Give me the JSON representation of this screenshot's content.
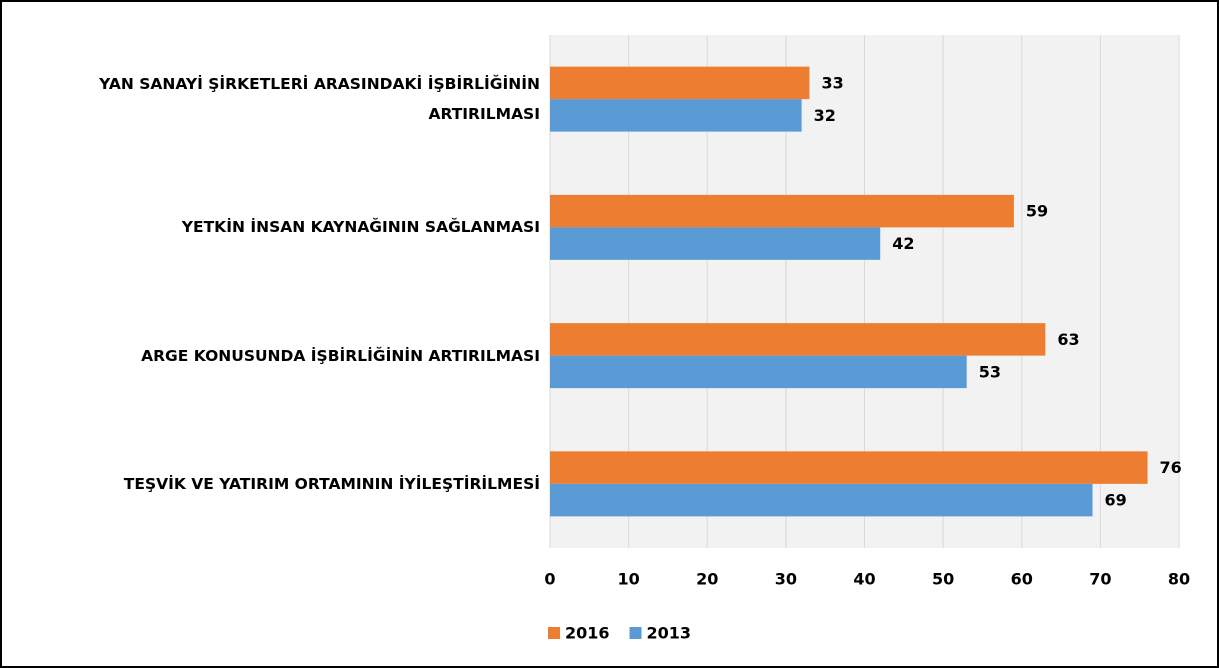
{
  "chart_data": {
    "type": "barh",
    "categories": [
      "YAN SANAYİ ŞİRKETLERİ ARASINDAKİ İŞBİRLİĞİNİN ARTIRILMASI",
      "YETKİN İNSAN KAYNAĞININ SAĞLANMASI",
      "ARGE KONUSUNDA İŞBİRLİĞİNİN ARTIRILMASI",
      "TEŞVİK VE YATIRIM ORTAMININ İYİLEŞTİRİLMESİ"
    ],
    "series": [
      {
        "name": "2016",
        "color": "#ed7d31",
        "values": [
          33,
          59,
          63,
          76
        ]
      },
      {
        "name": "2013",
        "color": "#5b9bd5",
        "values": [
          32,
          42,
          53,
          69
        ]
      }
    ],
    "xlim": [
      0,
      80
    ],
    "xticks": [
      0,
      10,
      20,
      30,
      40,
      50,
      60,
      70,
      80
    ],
    "grid": true,
    "legend": "bottom"
  }
}
